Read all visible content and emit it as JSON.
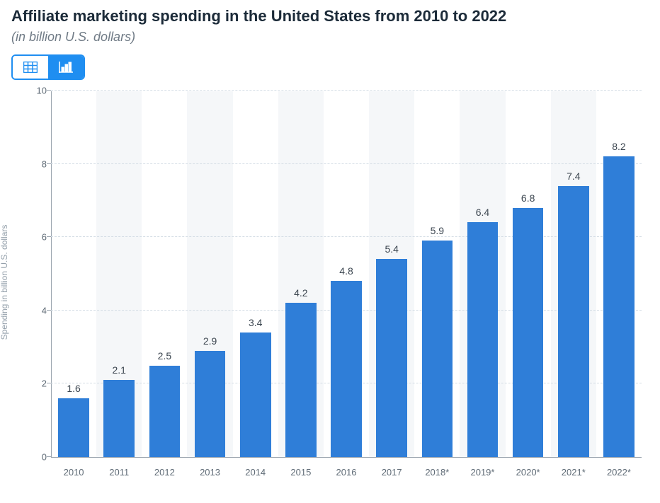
{
  "header": {
    "title": "Affiliate marketing spending in the United States from 2010 to 2022",
    "subtitle": "(in billion U.S. dollars)"
  },
  "toggle": {
    "table_icon": "table-icon",
    "chart_icon": "bar-chart-icon",
    "active": "chart"
  },
  "chart": {
    "type": "bar",
    "y_axis_title": "Spending in billion U.S. dollars",
    "ylim": [
      0,
      10
    ],
    "ytick_step": 2,
    "yticks": [
      0,
      2,
      4,
      6,
      8,
      10
    ],
    "bar_color": "#2f7ed8",
    "background_color": "#ffffff",
    "band_shade_color": "#f5f7f9",
    "grid_color": "#d4dde5",
    "axis_color": "#9aa4ae",
    "label_color": "#5f6b76",
    "title_color": "#1c2b39",
    "bar_width_ratio": 0.68,
    "value_label_fontsize": 14,
    "tick_label_fontsize": 13,
    "axis_title_fontsize": 12,
    "categories": [
      "2010",
      "2011",
      "2012",
      "2013",
      "2014",
      "2015",
      "2016",
      "2017",
      "2018*",
      "2019*",
      "2020*",
      "2021*",
      "2022*"
    ],
    "values": [
      1.6,
      2.1,
      2.5,
      2.9,
      3.4,
      4.2,
      4.8,
      5.4,
      5.9,
      6.4,
      6.8,
      7.4,
      8.2
    ],
    "value_labels": [
      "1.6",
      "2.1",
      "2.5",
      "2.9",
      "3.4",
      "4.2",
      "4.8",
      "5.4",
      "5.9",
      "6.4",
      "6.8",
      "7.4",
      "8.2"
    ]
  }
}
